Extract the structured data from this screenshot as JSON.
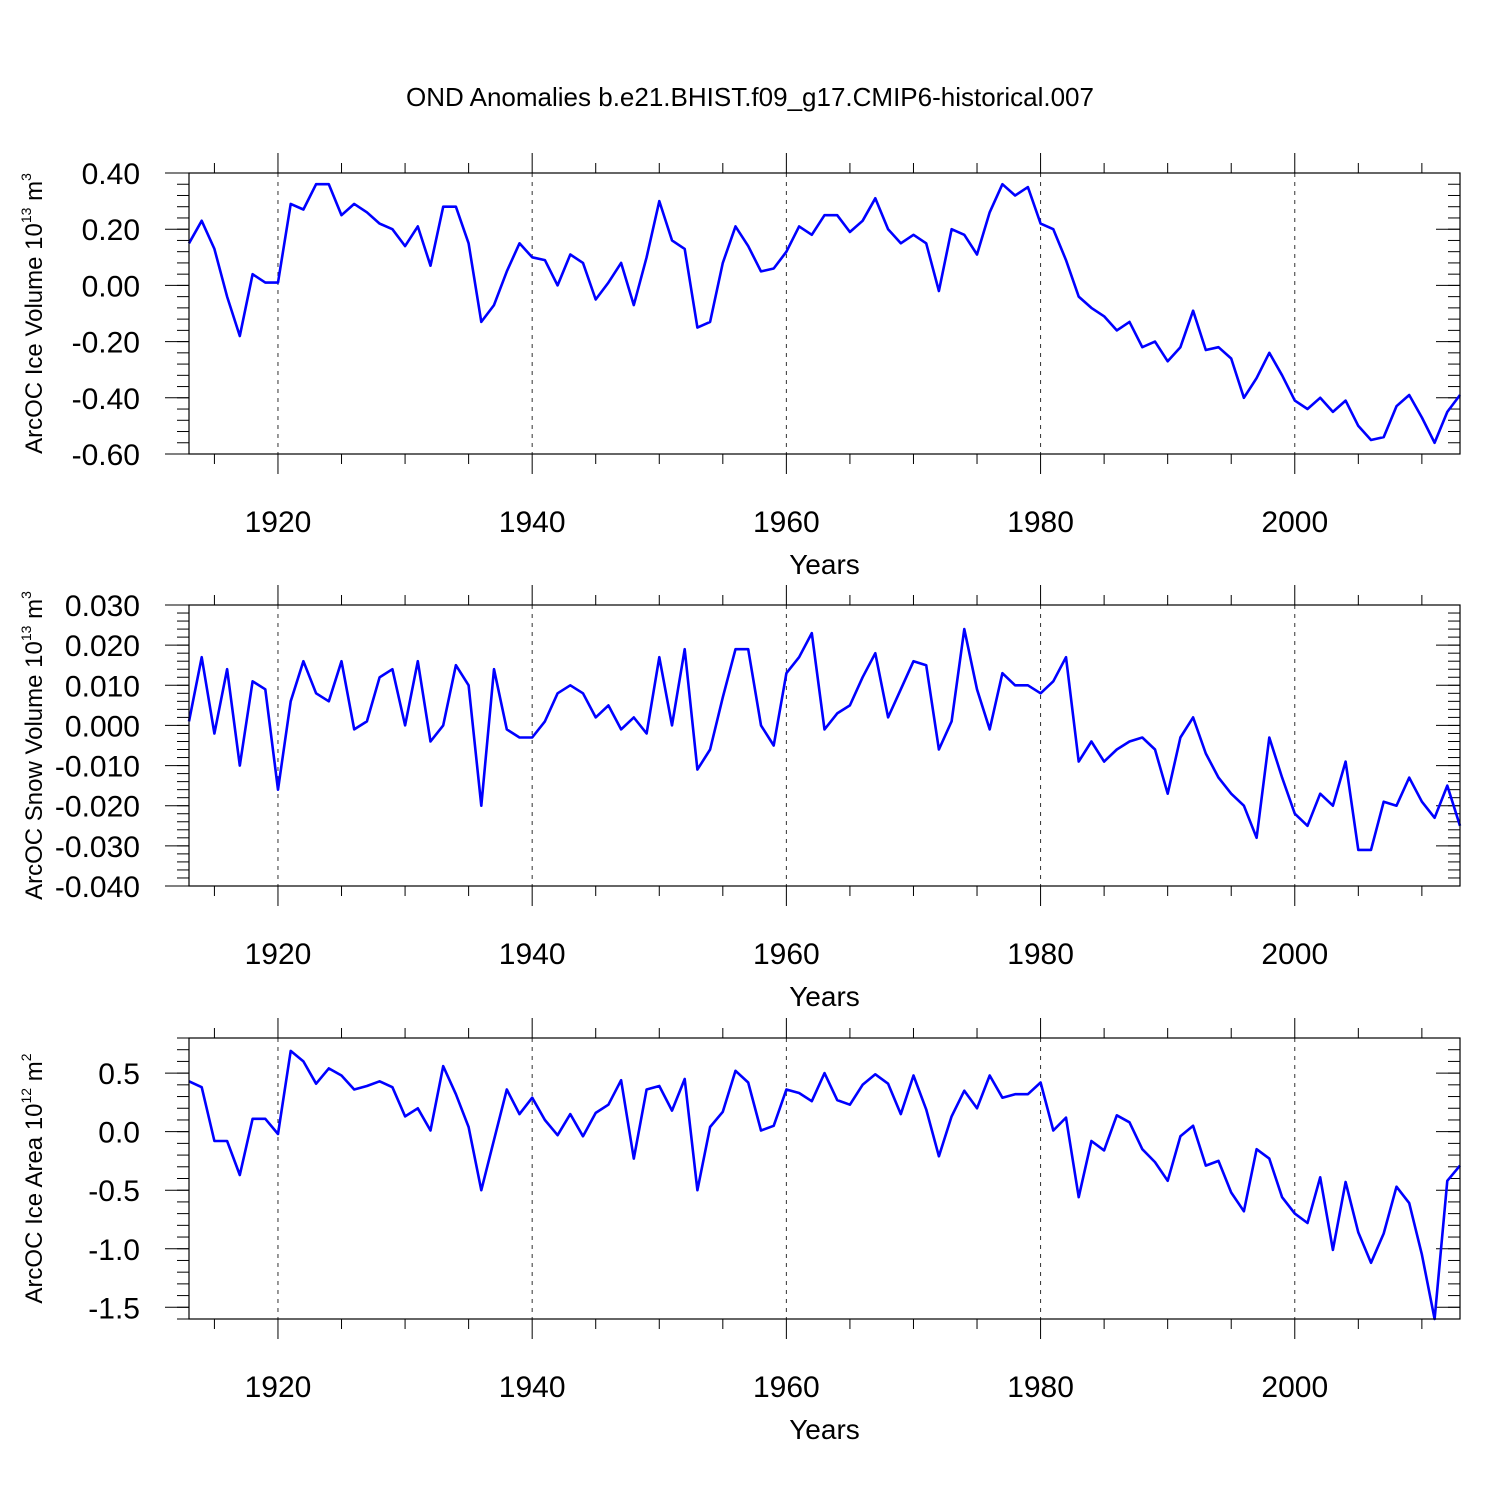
{
  "chart_data": {
    "title": "OND Anomalies b.e21.BHIST.f09_g17.CMIP6-historical.007",
    "type": "line",
    "panels": [
      {
        "ylabel": {
          "text": "ArcOC Ice Volume 10",
          "exp": "13",
          "unit": "m",
          "unit_exp": "3"
        },
        "xlabel": "Years",
        "ylim": [
          -0.6,
          0.4
        ],
        "xlim": [
          1913,
          2013
        ],
        "yticks": [
          -0.6,
          -0.4,
          -0.2,
          0.0,
          0.2,
          0.4
        ],
        "ytick_labels": [
          "-0.60",
          "-0.40",
          "-0.20",
          "0.00",
          "0.20",
          "0.40"
        ],
        "xticks": [
          1920,
          1940,
          1960,
          1980,
          2000
        ],
        "xtick_labels": [
          "1920",
          "1940",
          "1960",
          "1980",
          "2000"
        ],
        "vgrid": [
          1920,
          1940,
          1960,
          1980,
          2000
        ],
        "color": "#0000ff",
        "x_start": 1913,
        "values": [
          0.15,
          0.23,
          0.13,
          -0.04,
          -0.18,
          0.04,
          0.01,
          0.01,
          0.29,
          0.27,
          0.36,
          0.36,
          0.25,
          0.29,
          0.26,
          0.22,
          0.2,
          0.14,
          0.21,
          0.07,
          0.28,
          0.28,
          0.15,
          -0.13,
          -0.07,
          0.05,
          0.15,
          0.1,
          0.09,
          0.0,
          0.11,
          0.08,
          -0.05,
          0.01,
          0.08,
          -0.07,
          0.1,
          0.3,
          0.16,
          0.13,
          -0.15,
          -0.13,
          0.08,
          0.21,
          0.14,
          0.05,
          0.06,
          0.12,
          0.21,
          0.18,
          0.25,
          0.25,
          0.19,
          0.23,
          0.31,
          0.2,
          0.15,
          0.18,
          0.15,
          -0.02,
          0.2,
          0.18,
          0.11,
          0.26,
          0.36,
          0.32,
          0.35,
          0.22,
          0.2,
          0.09,
          -0.04,
          -0.08,
          -0.11,
          -0.16,
          -0.13,
          -0.22,
          -0.2,
          -0.27,
          -0.22,
          -0.09,
          -0.23,
          -0.22,
          -0.26,
          -0.4,
          -0.33,
          -0.24,
          -0.32,
          -0.41,
          -0.44,
          -0.4,
          -0.45,
          -0.41,
          -0.5,
          -0.55,
          -0.54,
          -0.43,
          -0.39,
          -0.47,
          -0.56,
          -0.45,
          -0.39
        ]
      },
      {
        "ylabel": {
          "text": "ArcOC Snow Volume 10",
          "exp": "13",
          "unit": "m",
          "unit_exp": "3"
        },
        "xlabel": "Years",
        "ylim": [
          -0.04,
          0.03
        ],
        "xlim": [
          1913,
          2013
        ],
        "yticks": [
          -0.04,
          -0.03,
          -0.02,
          -0.01,
          0.0,
          0.01,
          0.02,
          0.03
        ],
        "ytick_labels": [
          "-0.040",
          "-0.030",
          "-0.020",
          "-0.010",
          "0.000",
          "0.010",
          "0.020",
          "0.030"
        ],
        "xticks": [
          1920,
          1940,
          1960,
          1980,
          2000
        ],
        "xtick_labels": [
          "1920",
          "1940",
          "1960",
          "1980",
          "2000"
        ],
        "vgrid": [
          1920,
          1940,
          1960,
          1980,
          2000
        ],
        "color": "#0000ff",
        "x_start": 1913,
        "values": [
          0.001,
          0.017,
          -0.002,
          0.014,
          -0.01,
          0.011,
          0.009,
          -0.016,
          0.006,
          0.016,
          0.008,
          0.006,
          0.016,
          -0.001,
          0.001,
          0.012,
          0.014,
          0.0,
          0.016,
          -0.004,
          0.0,
          0.015,
          0.01,
          -0.02,
          0.014,
          -0.001,
          -0.003,
          -0.003,
          0.001,
          0.008,
          0.01,
          0.008,
          0.002,
          0.005,
          -0.001,
          0.002,
          -0.002,
          0.017,
          0.0,
          0.019,
          -0.011,
          -0.006,
          0.007,
          0.019,
          0.019,
          0.0,
          -0.005,
          0.013,
          0.017,
          0.023,
          -0.001,
          0.003,
          0.005,
          0.012,
          0.018,
          0.002,
          0.009,
          0.016,
          0.015,
          -0.006,
          0.001,
          0.024,
          0.009,
          -0.001,
          0.013,
          0.01,
          0.01,
          0.008,
          0.011,
          0.017,
          -0.009,
          -0.004,
          -0.009,
          -0.006,
          -0.004,
          -0.003,
          -0.006,
          -0.017,
          -0.003,
          0.002,
          -0.007,
          -0.013,
          -0.017,
          -0.02,
          -0.028,
          -0.003,
          -0.013,
          -0.022,
          -0.025,
          -0.017,
          -0.02,
          -0.009,
          -0.031,
          -0.031,
          -0.019,
          -0.02,
          -0.013,
          -0.019,
          -0.023,
          -0.015,
          -0.025
        ]
      },
      {
        "ylabel": {
          "text": "ArcOC Ice Area 10",
          "exp": "12",
          "unit": "m",
          "unit_exp": "2"
        },
        "xlabel": "Years",
        "ylim": [
          -1.6,
          0.8
        ],
        "xlim": [
          1913,
          2013
        ],
        "yticks": [
          -1.5,
          -1.0,
          -0.5,
          0.0,
          0.5
        ],
        "ytick_labels": [
          "-1.5",
          "-1.0",
          "-0.5",
          "0.0",
          "0.5"
        ],
        "xticks": [
          1920,
          1940,
          1960,
          1980,
          2000
        ],
        "xtick_labels": [
          "1920",
          "1940",
          "1960",
          "1980",
          "2000"
        ],
        "vgrid": [
          1920,
          1940,
          1960,
          1980,
          2000
        ],
        "color": "#0000ff",
        "x_start": 1913,
        "values": [
          0.43,
          0.38,
          -0.08,
          -0.08,
          -0.37,
          0.11,
          0.11,
          -0.02,
          0.69,
          0.6,
          0.41,
          0.54,
          0.48,
          0.36,
          0.39,
          0.43,
          0.38,
          0.13,
          0.2,
          0.01,
          0.56,
          0.32,
          0.04,
          -0.5,
          -0.07,
          0.36,
          0.15,
          0.29,
          0.1,
          -0.03,
          0.15,
          -0.04,
          0.16,
          0.23,
          0.44,
          -0.23,
          0.36,
          0.39,
          0.18,
          0.45,
          -0.5,
          0.04,
          0.17,
          0.52,
          0.42,
          0.01,
          0.05,
          0.36,
          0.33,
          0.26,
          0.5,
          0.27,
          0.23,
          0.4,
          0.49,
          0.41,
          0.15,
          0.48,
          0.19,
          -0.21,
          0.13,
          0.35,
          0.2,
          0.48,
          0.29,
          0.32,
          0.32,
          0.42,
          0.01,
          0.12,
          -0.56,
          -0.08,
          -0.16,
          0.14,
          0.08,
          -0.15,
          -0.26,
          -0.42,
          -0.04,
          0.05,
          -0.29,
          -0.25,
          -0.52,
          -0.68,
          -0.15,
          -0.23,
          -0.56,
          -0.7,
          -0.78,
          -0.39,
          -1.01,
          -0.43,
          -0.86,
          -1.12,
          -0.87,
          -0.47,
          -0.61,
          -1.05,
          -1.6,
          -0.42,
          -0.29
        ]
      }
    ]
  }
}
